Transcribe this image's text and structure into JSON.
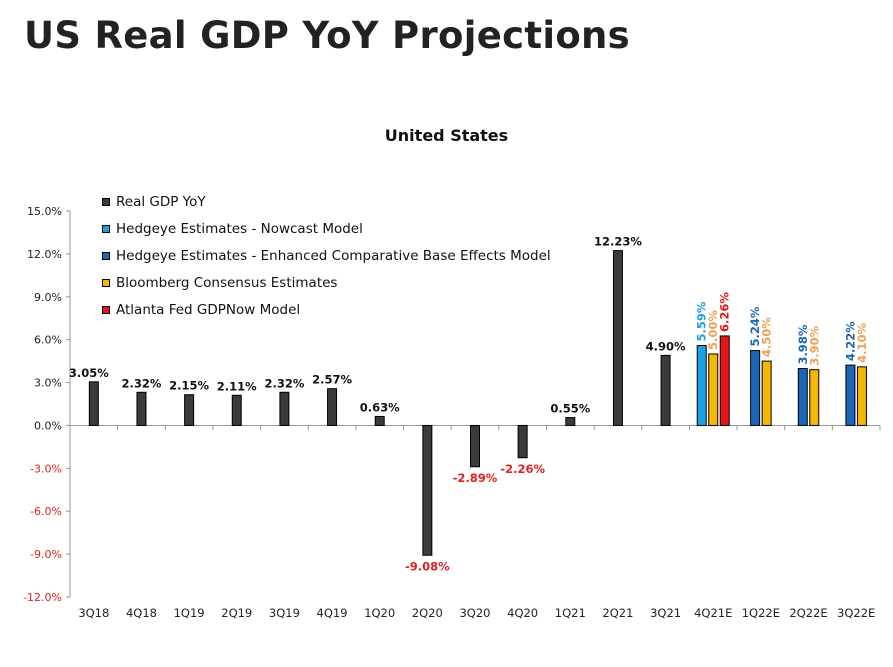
{
  "header": {
    "title": "US Real GDP YoY Projections"
  },
  "chart_data": {
    "type": "bar",
    "title": "United States",
    "xlabel": "",
    "ylabel": "",
    "ylim": [
      -12,
      15
    ],
    "yticks": [
      "15.0%",
      "12.0%",
      "9.0%",
      "6.0%",
      "3.0%",
      "0.0%",
      "-3.0%",
      "-6.0%",
      "-9.0%",
      "-12.0%"
    ],
    "ytick_values": [
      15,
      12,
      9,
      6,
      3,
      0,
      -3,
      -6,
      -9,
      -12
    ],
    "grid": false,
    "legend_position": "top-left",
    "categories": [
      "3Q18",
      "4Q18",
      "1Q19",
      "2Q19",
      "3Q19",
      "4Q19",
      "1Q20",
      "2Q20",
      "3Q20",
      "4Q20",
      "1Q21",
      "2Q21",
      "3Q21",
      "4Q21E",
      "1Q22E",
      "2Q22E",
      "3Q22E"
    ],
    "series": [
      {
        "name": "Real GDP YoY",
        "color": "#3b3b3b",
        "label_color": "#111111",
        "neg_label_color": "#e02020",
        "values": [
          3.05,
          2.32,
          2.15,
          2.11,
          2.32,
          2.57,
          0.63,
          -9.08,
          -2.89,
          -2.26,
          0.55,
          12.23,
          4.9,
          null,
          null,
          null,
          null
        ],
        "labels": [
          "3.05%",
          "2.32%",
          "2.15%",
          "2.11%",
          "2.32%",
          "2.57%",
          "0.63%",
          "-9.08%",
          "-2.89%",
          "-2.26%",
          "0.55%",
          "12.23%",
          "4.90%",
          "",
          "",
          "",
          ""
        ]
      },
      {
        "name": "Hedgeye Estimates - Nowcast Model",
        "color": "#1ca0e6",
        "label_color": "#1ca0e6",
        "values": [
          null,
          null,
          null,
          null,
          null,
          null,
          null,
          null,
          null,
          null,
          null,
          null,
          null,
          5.59,
          null,
          null,
          null
        ],
        "labels": [
          "",
          "",
          "",
          "",
          "",
          "",
          "",
          "",
          "",
          "",
          "",
          "",
          "",
          "5.59%",
          "",
          "",
          ""
        ]
      },
      {
        "name": "Hedgeye Estimates - Enhanced Comparative Base Effects Model",
        "color": "#1a66b8",
        "label_color": "#1a66b8",
        "values": [
          null,
          null,
          null,
          null,
          null,
          null,
          null,
          null,
          null,
          null,
          null,
          null,
          null,
          null,
          5.24,
          3.98,
          4.22
        ],
        "labels": [
          "",
          "",
          "",
          "",
          "",
          "",
          "",
          "",
          "",
          "",
          "",
          "",
          "",
          "",
          "5.24%",
          "3.98%",
          "4.22%"
        ]
      },
      {
        "name": "Bloomberg Consensus Estimates",
        "color": "#f5b700",
        "label_color": "#f0a050",
        "values": [
          null,
          null,
          null,
          null,
          null,
          null,
          null,
          null,
          null,
          null,
          null,
          null,
          null,
          5.0,
          4.5,
          3.9,
          4.1
        ],
        "labels": [
          "",
          "",
          "",
          "",
          "",
          "",
          "",
          "",
          "",
          "",
          "",
          "",
          "",
          "5.00%",
          "4.50%",
          "3.90%",
          "4.10%"
        ]
      },
      {
        "name": "Atlanta Fed GDPNow Model",
        "color": "#e8151b",
        "label_color": "#e8151b",
        "values": [
          null,
          null,
          null,
          null,
          null,
          null,
          null,
          null,
          null,
          null,
          null,
          null,
          null,
          6.26,
          null,
          null,
          null
        ],
        "labels": [
          "",
          "",
          "",
          "",
          "",
          "",
          "",
          "",
          "",
          "",
          "",
          "",
          "",
          "6.26%",
          "",
          "",
          ""
        ]
      }
    ]
  }
}
